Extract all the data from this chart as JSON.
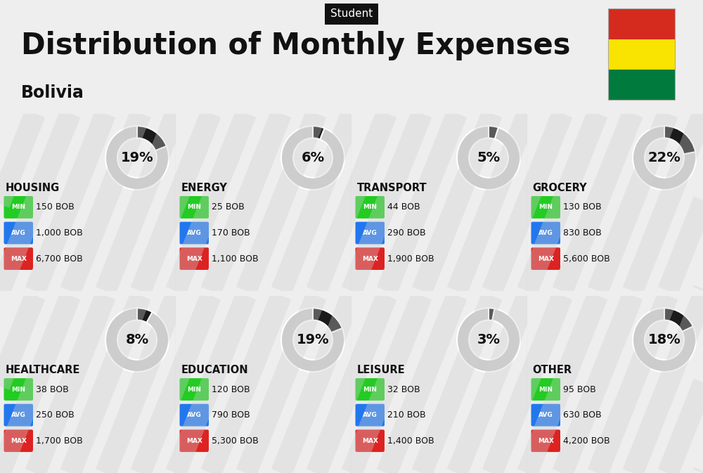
{
  "title": "Distribution of Monthly Expenses",
  "subtitle": "Bolivia",
  "header_label": "Student",
  "bg_color": "#eeeeee",
  "categories": [
    {
      "name": "HOUSING",
      "pct": 19,
      "min": "150 BOB",
      "avg": "1,000 BOB",
      "max": "6,700 BOB",
      "row": 0,
      "col": 0
    },
    {
      "name": "ENERGY",
      "pct": 6,
      "min": "25 BOB",
      "avg": "170 BOB",
      "max": "1,100 BOB",
      "row": 0,
      "col": 1
    },
    {
      "name": "TRANSPORT",
      "pct": 5,
      "min": "44 BOB",
      "avg": "290 BOB",
      "max": "1,900 BOB",
      "row": 0,
      "col": 2
    },
    {
      "name": "GROCERY",
      "pct": 22,
      "min": "130 BOB",
      "avg": "830 BOB",
      "max": "5,600 BOB",
      "row": 0,
      "col": 3
    },
    {
      "name": "HEALTHCARE",
      "pct": 8,
      "min": "38 BOB",
      "avg": "250 BOB",
      "max": "1,700 BOB",
      "row": 1,
      "col": 0
    },
    {
      "name": "EDUCATION",
      "pct": 19,
      "min": "120 BOB",
      "avg": "790 BOB",
      "max": "5,300 BOB",
      "row": 1,
      "col": 1
    },
    {
      "name": "LEISURE",
      "pct": 3,
      "min": "32 BOB",
      "avg": "210 BOB",
      "max": "1,400 BOB",
      "row": 1,
      "col": 2
    },
    {
      "name": "OTHER",
      "pct": 18,
      "min": "95 BOB",
      "avg": "630 BOB",
      "max": "4,200 BOB",
      "row": 1,
      "col": 3
    }
  ],
  "min_color": "#22cc22",
  "avg_color": "#2277ee",
  "max_color": "#dd2222",
  "donut_filled_color": "#1a1a1a",
  "donut_empty_color": "#cccccc",
  "bolivia_flag_colors": [
    "#d52b1e",
    "#f9e300",
    "#007a3d"
  ],
  "title_fontsize": 30,
  "subtitle_fontsize": 17,
  "header_fontsize": 11,
  "category_fontsize": 11,
  "pct_fontsize": 15,
  "value_fontsize": 9,
  "badge_fontsize": 7
}
